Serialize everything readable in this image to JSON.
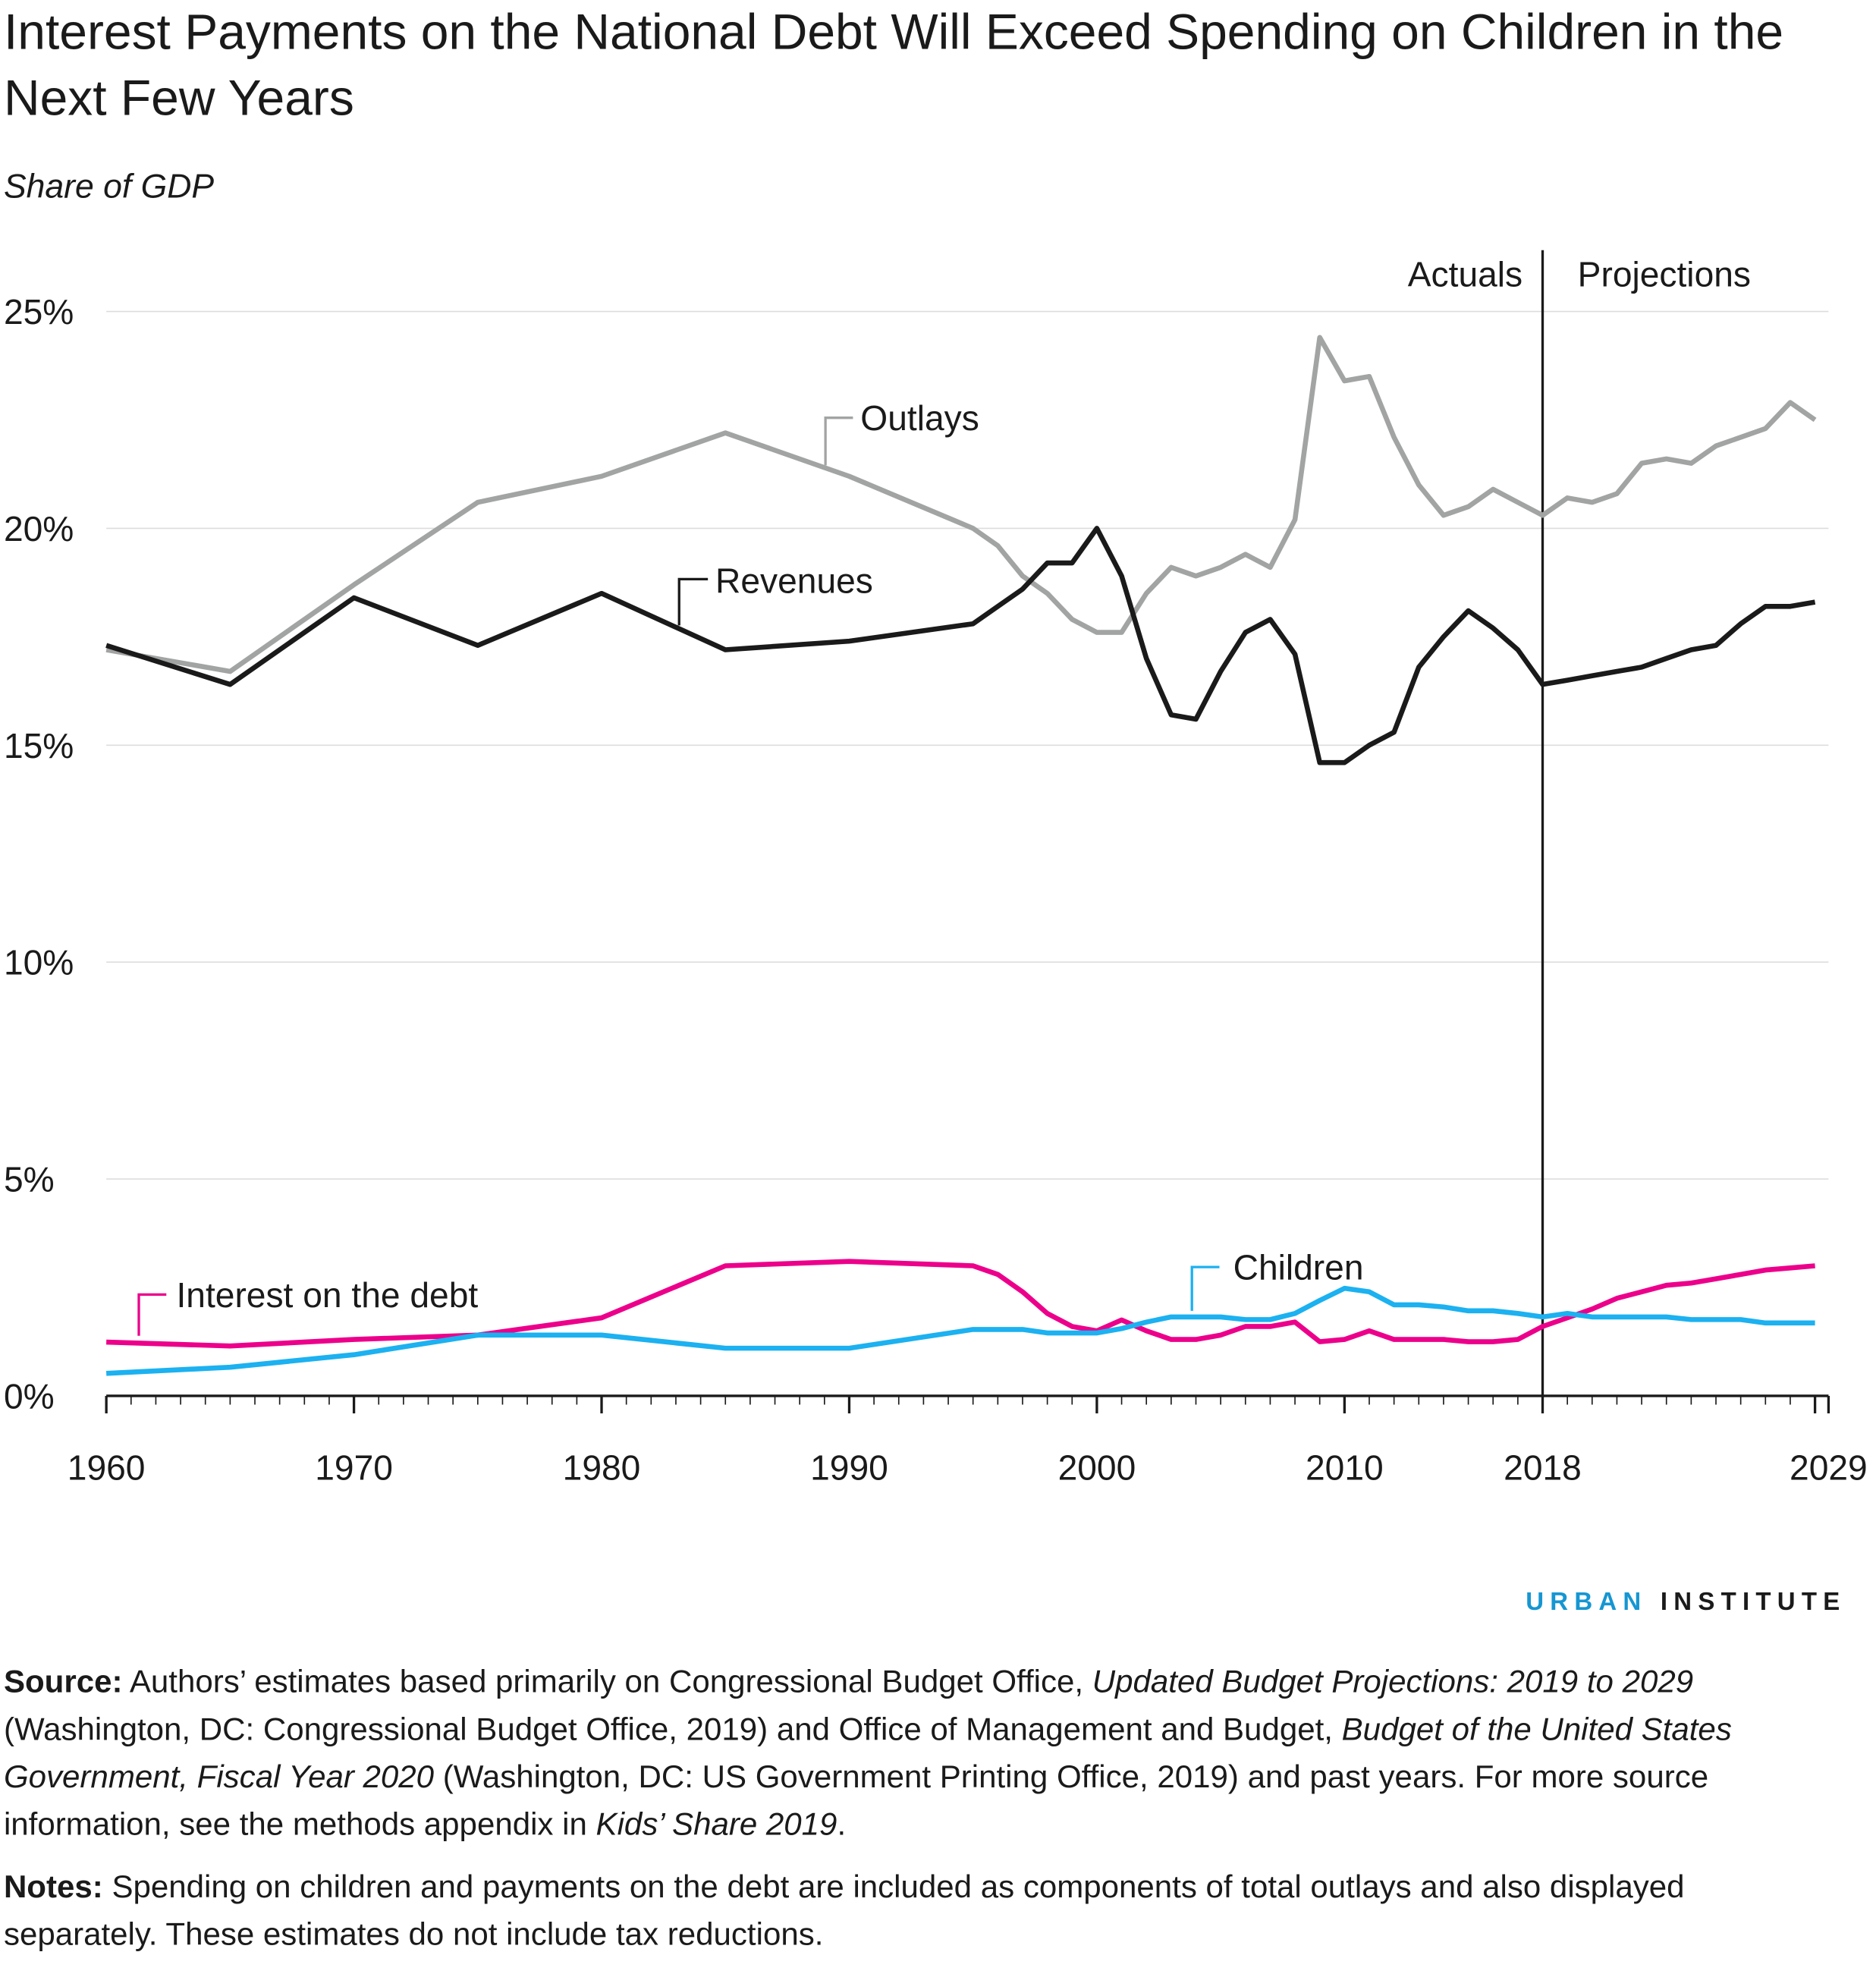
{
  "title": "Interest Payments on the National Debt Will Exceed Spending on Children in the Next Few Years",
  "subtitle": "Share of GDP",
  "chart_data": {
    "type": "line",
    "title": "Interest Payments on the National Debt Will Exceed Spending on Children in the Next Few Years",
    "ylabel": "Share of GDP",
    "ylim": [
      0,
      25
    ],
    "yticks": [
      "0%",
      "5%",
      "10%",
      "15%",
      "20%",
      "25%"
    ],
    "xticks": [
      "1960",
      "1970",
      "1980",
      "1990",
      "2000",
      "2010",
      "2018",
      "2029"
    ],
    "grid": true,
    "annotations": {
      "divider_year": 2018,
      "left": "Actuals",
      "right": "Projections"
    },
    "x": [
      1960,
      1965,
      1970,
      1975,
      1980,
      1985,
      1990,
      1995,
      1996,
      1997,
      1998,
      1999,
      2000,
      2001,
      2002,
      2003,
      2004,
      2005,
      2006,
      2007,
      2008,
      2009,
      2010,
      2011,
      2012,
      2013,
      2014,
      2015,
      2016,
      2017,
      2018,
      2019,
      2020,
      2021,
      2022,
      2023,
      2024,
      2025,
      2026,
      2027,
      2028,
      2029
    ],
    "series": [
      {
        "name": "Outlays",
        "color": "#a2a4a3",
        "values": [
          17.2,
          16.7,
          18.7,
          20.6,
          21.2,
          22.2,
          21.2,
          20.0,
          19.6,
          18.9,
          18.5,
          17.9,
          17.6,
          17.6,
          18.5,
          19.1,
          18.9,
          19.1,
          19.4,
          19.1,
          20.2,
          24.4,
          23.4,
          23.5,
          22.1,
          21.0,
          20.3,
          20.5,
          20.9,
          20.6,
          20.3,
          20.7,
          20.6,
          20.8,
          21.5,
          21.6,
          21.5,
          21.9,
          22.1,
          22.3,
          22.9,
          22.5
        ]
      },
      {
        "name": "Revenues",
        "color": "#1a1a1a",
        "values": [
          17.3,
          16.4,
          18.4,
          17.3,
          18.5,
          17.2,
          17.4,
          17.8,
          18.2,
          18.6,
          19.2,
          19.2,
          20.0,
          18.9,
          17.0,
          15.7,
          15.6,
          16.7,
          17.6,
          17.9,
          17.1,
          14.6,
          14.6,
          15.0,
          15.3,
          16.8,
          17.5,
          18.1,
          17.7,
          17.2,
          16.4,
          16.5,
          16.6,
          16.7,
          16.8,
          17.0,
          17.2,
          17.3,
          17.8,
          18.2,
          18.2,
          18.3
        ]
      },
      {
        "name": "Interest on the debt",
        "color": "#ec008b",
        "values": [
          1.24,
          1.15,
          1.3,
          1.4,
          1.8,
          3.0,
          3.1,
          3.0,
          2.8,
          2.4,
          1.9,
          1.6,
          1.5,
          1.75,
          1.5,
          1.3,
          1.3,
          1.4,
          1.6,
          1.6,
          1.7,
          1.25,
          1.3,
          1.5,
          1.3,
          1.3,
          1.3,
          1.25,
          1.25,
          1.3,
          1.6,
          1.8,
          2.0,
          2.25,
          2.4,
          2.55,
          2.6,
          2.7,
          2.8,
          2.9,
          2.95,
          3.0
        ]
      },
      {
        "name": "Children",
        "color": "#1cb1f0",
        "values": [
          0.52,
          0.66,
          0.95,
          1.4,
          1.4,
          1.1,
          1.1,
          1.53,
          1.53,
          1.53,
          1.45,
          1.45,
          1.45,
          1.55,
          1.7,
          1.82,
          1.82,
          1.82,
          1.76,
          1.76,
          1.9,
          2.2,
          2.48,
          2.4,
          2.1,
          2.1,
          2.05,
          1.96,
          1.96,
          1.9,
          1.82,
          1.9,
          1.82,
          1.82,
          1.82,
          1.82,
          1.76,
          1.76,
          1.76,
          1.68,
          1.68,
          1.68
        ]
      }
    ]
  },
  "logo": {
    "part1": "URBAN",
    "part2": "INSTITUTE"
  },
  "source": {
    "label": "Source:",
    "t1": " Authors’ estimates based primarily on Congressional Budget Office, ",
    "i1": "Updated Budget Projections: 2019 to 2029",
    "t2": " (Washington, DC: Congressional Budget Office, 2019) and Office of Management and Budget, ",
    "i2": "Budget of the United States Government, Fiscal Year 2020",
    "t3": " (Washington, DC: US Government Printing Office, 2019) and past years. For more source information, see the methods appendix in ",
    "i3": "Kids’ Share 2019",
    "t4": "."
  },
  "notes": {
    "label": "Notes:",
    "text": " Spending on children and payments on the debt are included as components of total outlays and also displayed separately. These estimates do not include tax reductions."
  }
}
